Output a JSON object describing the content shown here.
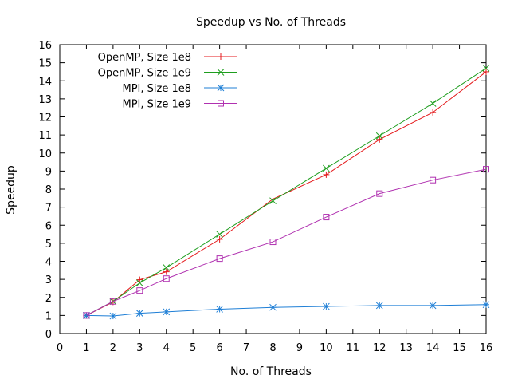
{
  "chart_data": {
    "type": "line",
    "title": "Speedup vs No. of Threads",
    "xlabel": "No. of Threads",
    "ylabel": "Speedup",
    "xlim": [
      0,
      16
    ],
    "ylim": [
      0,
      16
    ],
    "xticks": [
      0,
      1,
      2,
      3,
      4,
      5,
      6,
      7,
      8,
      9,
      10,
      11,
      12,
      13,
      14,
      15,
      16
    ],
    "yticks": [
      0,
      1,
      2,
      3,
      4,
      5,
      6,
      7,
      8,
      9,
      10,
      11,
      12,
      13,
      14,
      15,
      16
    ],
    "grid": false,
    "legend": "top-left",
    "x": [
      1,
      2,
      3,
      4,
      6,
      8,
      10,
      12,
      14,
      16
    ],
    "series": [
      {
        "name": "OpenMP, Size 1e8",
        "color": "#e41a1c",
        "marker": "plus",
        "values": [
          1.0,
          1.75,
          2.98,
          3.42,
          5.22,
          7.45,
          8.8,
          10.75,
          12.25,
          14.5
        ]
      },
      {
        "name": "OpenMP, Size 1e9",
        "color": "#1e9e1e",
        "marker": "cross",
        "values": [
          1.0,
          1.78,
          2.8,
          3.65,
          5.5,
          7.35,
          9.15,
          10.95,
          12.75,
          14.7
        ]
      },
      {
        "name": "MPI, Size 1e8",
        "color": "#1f7fd6",
        "marker": "star",
        "values": [
          1.0,
          0.97,
          1.12,
          1.2,
          1.35,
          1.45,
          1.5,
          1.55,
          1.55,
          1.6
        ]
      },
      {
        "name": "MPI, Size 1e9",
        "color": "#b030b0",
        "marker": "square",
        "values": [
          1.0,
          1.78,
          2.38,
          3.04,
          4.15,
          5.08,
          6.45,
          7.75,
          8.5,
          9.1
        ]
      }
    ]
  }
}
